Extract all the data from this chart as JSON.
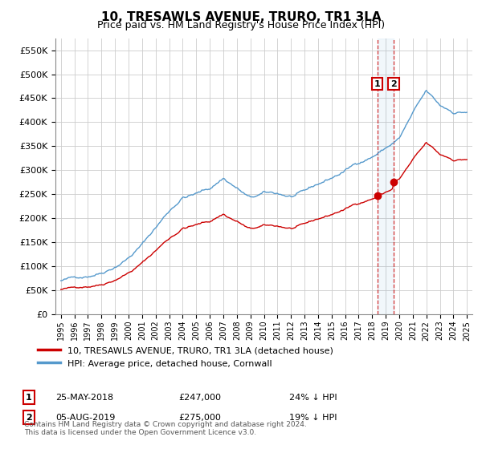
{
  "title": "10, TRESAWLS AVENUE, TRURO, TR1 3LA",
  "subtitle": "Price paid vs. HM Land Registry's House Price Index (HPI)",
  "hpi_label": "HPI: Average price, detached house, Cornwall",
  "property_label": "10, TRESAWLS AVENUE, TRURO, TR1 3LA (detached house)",
  "footer": "Contains HM Land Registry data © Crown copyright and database right 2024.\nThis data is licensed under the Open Government Licence v3.0.",
  "sale1_label": "25-MAY-2018",
  "sale1_price": "£247,000",
  "sale1_hpi": "24% ↓ HPI",
  "sale2_label": "05-AUG-2019",
  "sale2_price": "£275,000",
  "sale2_hpi": "19% ↓ HPI",
  "sale1_date": 2018.38,
  "sale2_date": 2019.58,
  "sale1_value": 247000,
  "sale2_value": 275000,
  "ylim": [
    0,
    575000
  ],
  "xlim": [
    1994.6,
    2025.4
  ],
  "red_color": "#cc0000",
  "blue_color": "#5599cc",
  "dashed_color": "#cc0000",
  "background_color": "#ffffff",
  "grid_color": "#cccccc"
}
